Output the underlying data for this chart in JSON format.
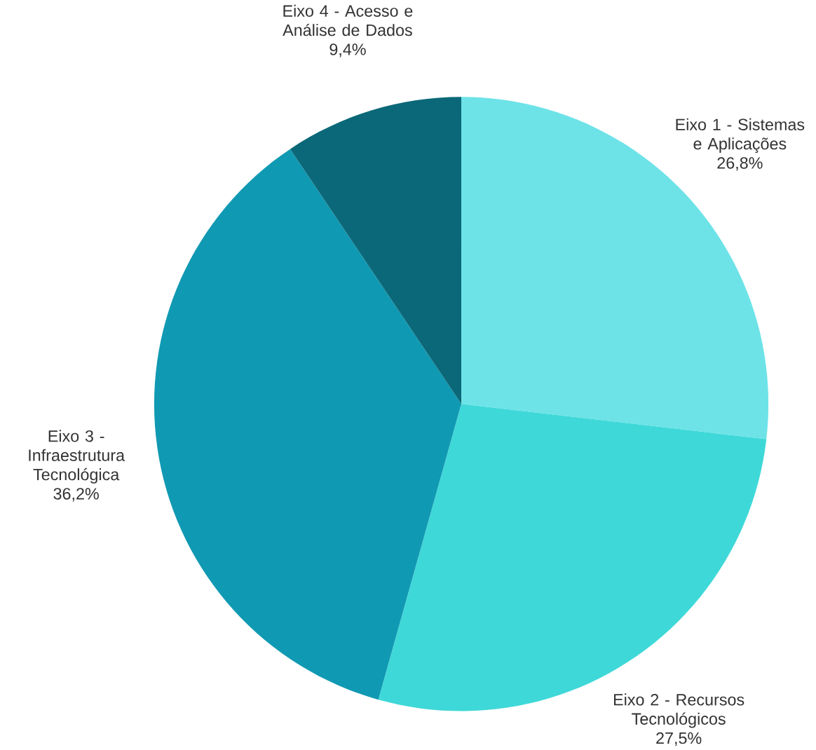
{
  "chart_data": {
    "type": "pie",
    "categories": [
      "Eixo 1 - Sistemas e Aplicações",
      "Eixo 2 - Recursos Tecnológicos",
      "Eixo 3 - Infraestrutura Tecnológica",
      "Eixo 4 - Acesso e Análise de Dados"
    ],
    "values": [
      26.8,
      27.5,
      36.2,
      9.4
    ],
    "value_labels": [
      "26,8%",
      "27,5%",
      "36,2%",
      "9,4%"
    ],
    "colors": [
      "#6de3e8",
      "#3fd8d8",
      "#1099b3",
      "#0b6878"
    ]
  }
}
